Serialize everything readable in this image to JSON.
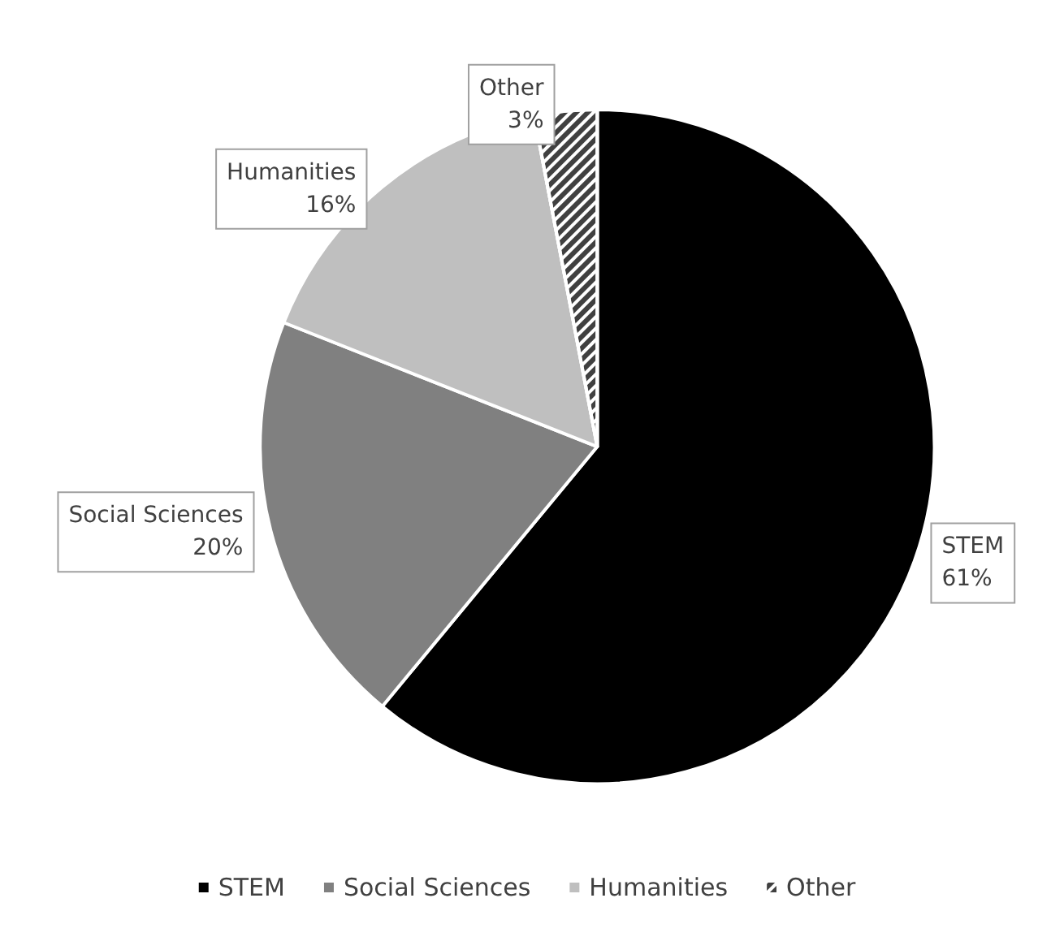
{
  "chart_data": {
    "type": "pie",
    "categories": [
      "STEM",
      "Social Sciences",
      "Humanities",
      "Other"
    ],
    "values": [
      61,
      20,
      16,
      3
    ],
    "colors": [
      "#000000",
      "#808080",
      "#bfbfbf",
      "#404040"
    ],
    "value_labels": [
      "61%",
      "20%",
      "16%",
      "3%"
    ],
    "legend": "bottom"
  }
}
